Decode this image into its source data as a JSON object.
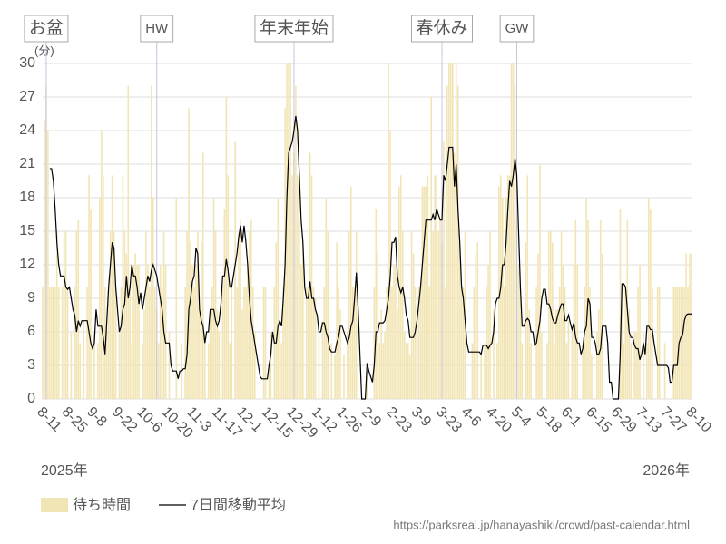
{
  "chart_data": {
    "type": "bar",
    "unit_label": "(分)",
    "annotations": [
      "お盆",
      "HW",
      "年末年始",
      "春休み",
      "GW"
    ],
    "year_labels": [
      "2025年",
      "2026年"
    ],
    "source": "https://parksreal.jp/hanayashiki/crowd/past-calendar.html",
    "ylim": [
      0,
      30
    ],
    "yticks": [
      0,
      3,
      6,
      9,
      12,
      15,
      18,
      21,
      24,
      27,
      30
    ],
    "grid": true,
    "categories": [
      "8-11",
      null,
      null,
      null,
      null,
      null,
      null,
      null,
      null,
      null,
      null,
      null,
      null,
      null,
      "8-25",
      null,
      null,
      null,
      null,
      null,
      null,
      null,
      null,
      null,
      null,
      null,
      null,
      null,
      "9-8",
      null,
      null,
      null,
      null,
      null,
      null,
      null,
      null,
      null,
      null,
      null,
      null,
      null,
      "9-22",
      null,
      null,
      null,
      null,
      null,
      null,
      null,
      null,
      null,
      null,
      null,
      null,
      null,
      "10-6",
      null,
      null,
      null,
      null,
      null,
      null,
      null,
      null,
      null,
      null,
      null,
      null,
      null,
      "10-20",
      null,
      null,
      null,
      null,
      null,
      null,
      null,
      null,
      null,
      null,
      null,
      null,
      null,
      "11-3",
      null,
      null,
      null,
      null,
      null,
      null,
      null,
      null,
      null,
      null,
      null,
      null,
      null,
      "11-17",
      null,
      null,
      null,
      null,
      null,
      null,
      null,
      null,
      null,
      null,
      null,
      null,
      null,
      "12-1",
      null,
      null,
      null,
      null,
      null,
      null,
      null,
      null,
      null,
      null,
      null,
      null,
      null,
      "12-15",
      null,
      null,
      null,
      null,
      null,
      null,
      null,
      null,
      null,
      null,
      null,
      null,
      null,
      "12-29",
      null,
      null,
      null,
      null,
      null,
      null,
      null,
      null,
      null,
      null,
      null,
      null,
      null,
      "1-12",
      null,
      null,
      null,
      null,
      null,
      null,
      null,
      null,
      null,
      null,
      null,
      null,
      null,
      "1-26",
      null,
      null,
      null,
      null,
      null,
      null,
      null,
      null,
      null,
      null,
      null,
      null,
      null,
      "2-9",
      null,
      null,
      null,
      null,
      null,
      null,
      null,
      null,
      null,
      null,
      null,
      null,
      null,
      "2-23",
      null,
      null,
      null,
      null,
      null,
      null,
      null,
      null,
      null,
      null,
      null,
      null,
      null,
      "3-9",
      null,
      null,
      null,
      null,
      null,
      null,
      null,
      null,
      null,
      null,
      null,
      null,
      null,
      "3-23",
      null,
      null,
      null,
      null,
      null,
      null,
      null,
      null,
      null,
      null,
      null,
      null,
      null,
      "4-6",
      null,
      null,
      null,
      null,
      null,
      null,
      null,
      null,
      null,
      null,
      null,
      null,
      null,
      "4-20",
      null,
      null,
      null,
      null,
      null,
      null,
      null,
      null,
      null,
      null,
      null,
      null,
      null,
      "5-4",
      null,
      null,
      null,
      null,
      null,
      null,
      null,
      null,
      null,
      null,
      null,
      null,
      null,
      "5-18",
      null,
      null,
      null,
      null,
      null,
      null,
      null,
      null,
      null,
      null,
      null,
      null,
      null,
      "6-1",
      null,
      null,
      null,
      null,
      null,
      null,
      null,
      null,
      null,
      null,
      null,
      null,
      null,
      "6-15",
      null,
      null,
      null,
      null,
      null,
      null,
      null,
      null,
      null,
      null,
      null,
      null,
      null,
      "6-29",
      null,
      null,
      null,
      null,
      null,
      null,
      null,
      null,
      null,
      null,
      null,
      null,
      null,
      "7-13",
      null,
      null,
      null,
      null,
      null,
      null,
      null,
      null,
      null,
      null,
      null,
      null,
      null,
      "7-27",
      null,
      null,
      null,
      null,
      null,
      null,
      null,
      null,
      null,
      null,
      null,
      null,
      null,
      "8-10"
    ],
    "series": [
      {
        "name": "待ち時間",
        "type": "bar",
        "color": "#f2e5b5",
        "values": [
          10,
          25,
          28,
          24,
          10,
          10,
          10,
          10,
          15,
          10,
          0,
          10,
          15,
          15,
          10,
          0,
          6,
          0,
          10,
          15,
          16,
          5,
          0,
          7,
          0,
          10,
          20,
          17,
          0,
          6,
          0,
          5,
          18,
          24,
          20,
          10,
          6,
          10,
          15,
          20,
          15,
          10,
          0,
          6,
          10,
          20,
          15,
          13,
          28,
          10,
          5,
          12,
          13,
          12,
          12,
          0,
          5,
          8,
          15,
          12,
          10,
          28,
          18,
          10,
          8,
          5,
          12,
          10,
          15,
          12,
          0,
          6,
          0,
          0,
          0,
          18,
          0,
          0,
          5,
          0,
          10,
          15,
          26,
          14,
          12,
          10,
          12,
          15,
          8,
          14,
          22,
          6,
          0,
          5,
          7,
          10,
          18,
          15,
          8,
          6,
          0,
          10,
          17,
          27,
          20,
          5,
          10,
          0,
          23,
          10,
          15,
          16,
          8,
          10,
          10,
          12,
          15,
          16,
          10,
          6,
          0,
          0,
          0,
          0,
          10,
          10,
          0,
          3,
          6,
          0,
          10,
          14,
          18,
          6,
          5,
          10,
          26,
          30,
          30,
          30,
          20,
          22,
          28,
          20,
          16,
          12,
          14,
          0,
          10,
          10,
          22,
          20,
          10,
          9,
          0,
          6,
          0,
          7,
          10,
          18,
          15,
          0,
          5,
          0,
          4,
          14,
          10,
          8,
          0,
          4,
          0,
          6,
          15,
          19,
          10,
          10,
          15,
          0,
          0,
          0,
          0,
          0,
          3,
          0,
          0,
          0,
          10,
          17,
          13,
          5,
          8,
          5,
          6,
          10,
          30,
          24,
          10,
          12,
          12,
          8,
          19,
          20,
          15,
          6,
          5,
          5,
          4,
          15,
          13,
          10,
          6,
          10,
          10,
          19,
          19,
          19,
          20,
          10,
          27,
          15,
          20,
          20,
          15,
          16,
          14,
          23,
          10,
          28,
          30,
          30,
          30,
          22,
          30,
          28,
          14,
          10,
          10,
          15,
          0,
          0,
          0,
          5,
          10,
          13,
          14,
          0,
          4,
          0,
          5,
          10,
          12,
          15,
          0,
          8,
          0,
          5,
          19,
          20,
          18,
          10,
          18,
          20,
          20,
          30,
          30,
          28,
          16,
          12,
          10,
          5,
          0,
          14,
          20,
          8,
          5,
          0,
          0,
          10,
          13,
          21,
          6,
          0,
          0,
          5,
          15,
          15,
          14,
          5,
          8,
          8,
          10,
          15,
          12,
          10,
          5,
          7,
          0,
          6,
          12,
          16,
          12,
          0,
          0,
          5,
          10,
          18,
          16,
          10,
          4,
          0,
          0,
          6,
          8,
          16,
          13,
          0,
          0,
          0,
          0,
          0,
          0,
          0,
          0,
          0,
          17,
          10,
          5,
          10,
          16,
          8,
          5,
          0,
          6,
          6,
          10,
          12,
          0,
          6,
          0,
          5,
          18,
          17,
          10,
          0,
          0,
          10,
          10,
          0,
          0,
          5,
          0,
          0,
          0,
          0,
          10,
          10,
          10,
          10,
          10,
          10,
          10,
          13,
          10,
          13,
          13
        ]
      },
      {
        "name": "7日間移動平均",
        "type": "line",
        "color": "#000000",
        "values": [
          null,
          null,
          null,
          null,
          20.6,
          20.6,
          19.5,
          17,
          14,
          12,
          11,
          11,
          11,
          10,
          9.8,
          10,
          9,
          8,
          7.5,
          6,
          7,
          6.5,
          7,
          7,
          7,
          7,
          6,
          5,
          4.5,
          5,
          8,
          6.5,
          6.5,
          6.5,
          5.5,
          4,
          7,
          10,
          12,
          14,
          13.5,
          10,
          8,
          6,
          6.5,
          8,
          8.5,
          11,
          9,
          10,
          12,
          11,
          11,
          10,
          8.5,
          9.5,
          8,
          9,
          10,
          11,
          10.5,
          11.5,
          12,
          11.5,
          11,
          10,
          9,
          8,
          6,
          5,
          5,
          5,
          3,
          2.5,
          2.5,
          2.5,
          1.8,
          2.5,
          2.5,
          2.7,
          2.7,
          4,
          8,
          9,
          10.5,
          11,
          13.5,
          13,
          8,
          7,
          6.5,
          5,
          6,
          6,
          8,
          8,
          8,
          7,
          6.5,
          7,
          8.5,
          11,
          11,
          12.5,
          11.5,
          10,
          10,
          11,
          12,
          13,
          14.5,
          15.5,
          14,
          15.5,
          14,
          12,
          9,
          7,
          6,
          5,
          4,
          3,
          2,
          1.8,
          1.8,
          1.8,
          1.8,
          3,
          4,
          6,
          5,
          5,
          6.5,
          7,
          6.5,
          9,
          12,
          18,
          22,
          22.5,
          23,
          24,
          25.3,
          24,
          20,
          16,
          14,
          10,
          9,
          9,
          10.5,
          9,
          9,
          8,
          7.5,
          6,
          6,
          6.8,
          6.8,
          6,
          5.5,
          4.5,
          4.2,
          4.2,
          4.2,
          5,
          5.5,
          6.5,
          6.5,
          6,
          5.5,
          5,
          5.5,
          6.5,
          7,
          9,
          11.3,
          8,
          4,
          0,
          0,
          0,
          3.2,
          2.5,
          2,
          1.5,
          3,
          6,
          6,
          6.8,
          6.8,
          6.8,
          7,
          8,
          9,
          11,
          14,
          14,
          14.5,
          11,
          10,
          9.5,
          10,
          9,
          7.5,
          7,
          5.5,
          5.5,
          5.5,
          6,
          7,
          8.5,
          10,
          12,
          14,
          16,
          16,
          16,
          16,
          16.5,
          16,
          17,
          16.5,
          16,
          16,
          20,
          19.5,
          21,
          22.5,
          22.5,
          22.5,
          19,
          21,
          17,
          14,
          10,
          9,
          7,
          5,
          4.2,
          4.2,
          4.2,
          4.2,
          4.2,
          4.2,
          4.2,
          4,
          4.8,
          4.8,
          4.8,
          4.5,
          4.8,
          5,
          6,
          8.5,
          9,
          9,
          10,
          12,
          12,
          14,
          17,
          19.5,
          19,
          20,
          21.5,
          20,
          15,
          10,
          6.5,
          6.5,
          7,
          7.2,
          7,
          6,
          6,
          4.8,
          5,
          6,
          7,
          9,
          9.8,
          9.8,
          8.5,
          8.5,
          8,
          7.2,
          6.8,
          6.8,
          7.5,
          8,
          8.5,
          8.5,
          7,
          7,
          7.5,
          6.8,
          6.2,
          6.8,
          5.5,
          5,
          5,
          4,
          4.5,
          6,
          6.5,
          9,
          8.5,
          5.5,
          5.5,
          5,
          4,
          4,
          4.5,
          6.5,
          6.5,
          6.5,
          5,
          1.5,
          1.5,
          0,
          0,
          0,
          0,
          4,
          10.3,
          10.3,
          10,
          8,
          6,
          5.5,
          5.5,
          4.8,
          4.5,
          4.5,
          3.5,
          4,
          5,
          4,
          6.5,
          6.5,
          6.2,
          6.2,
          5,
          4,
          3,
          3,
          3,
          3,
          3,
          3,
          2.8,
          1.5,
          1.5,
          3,
          3,
          3,
          5,
          5.5,
          5.7,
          7,
          7.5,
          7.6,
          7.6,
          7.6
        ]
      }
    ]
  }
}
